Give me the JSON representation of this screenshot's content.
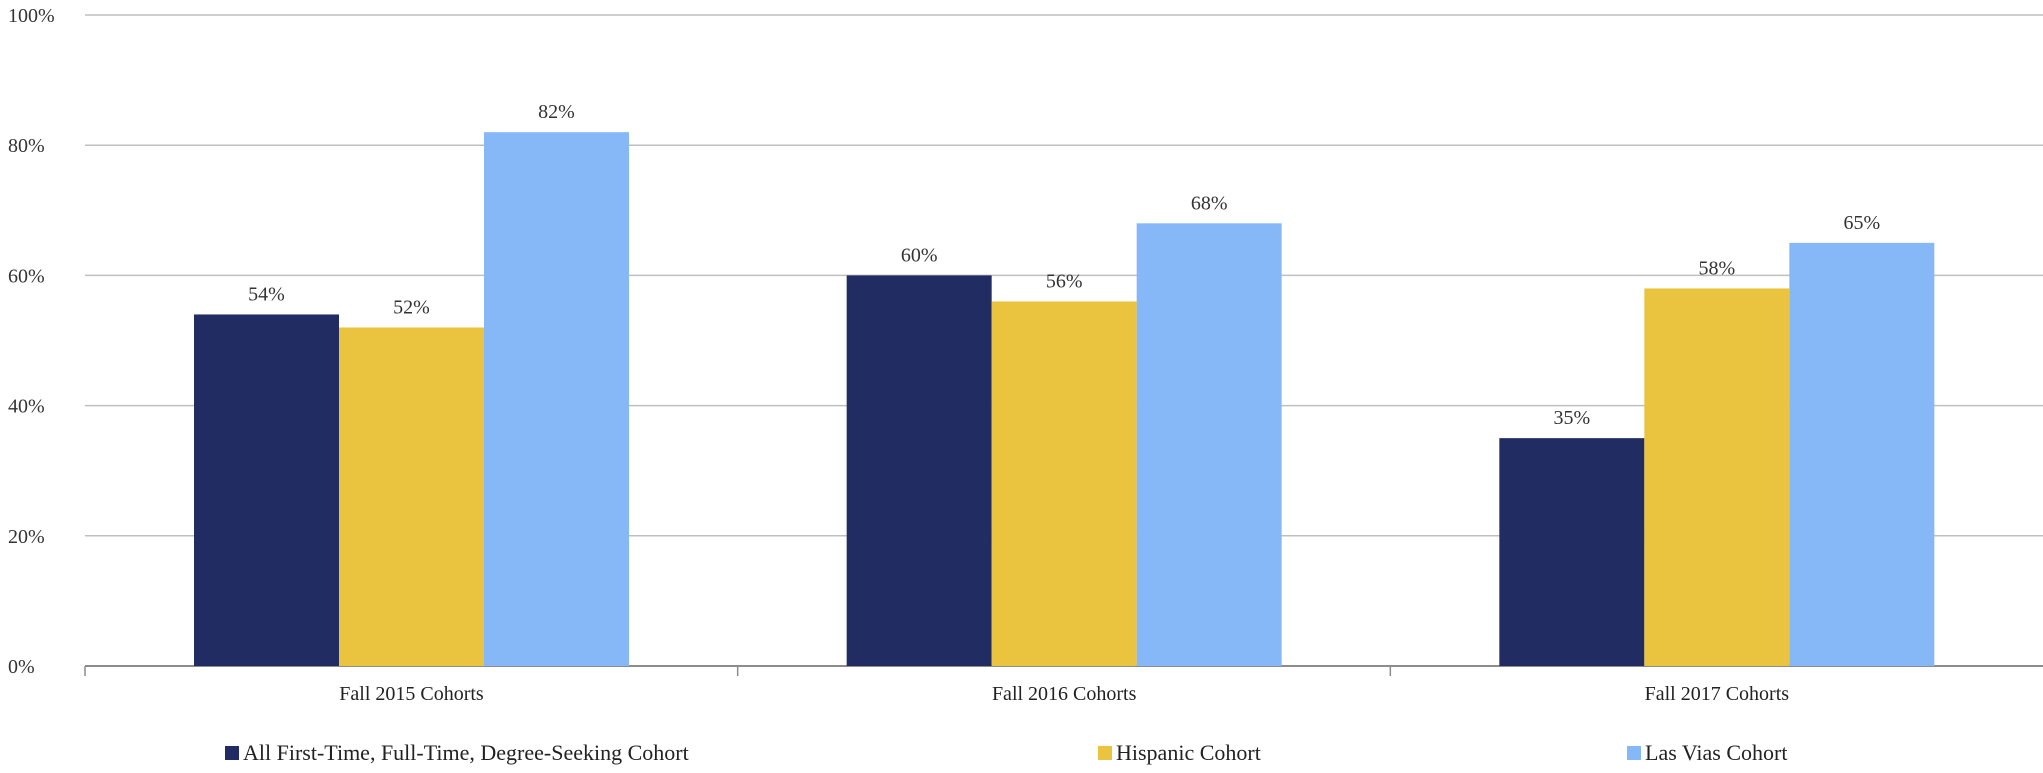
{
  "chart_data": {
    "type": "bar",
    "title": "",
    "xlabel": "",
    "ylabel": "",
    "ylim": [
      0,
      100
    ],
    "y_ticks": [
      0,
      20,
      40,
      60,
      80,
      100
    ],
    "y_tick_labels": [
      "0%",
      "20%",
      "40%",
      "60%",
      "80%",
      "100%"
    ],
    "grid": true,
    "legend_position": "bottom",
    "categories": [
      "Fall 2015 Cohorts",
      "Fall 2016 Cohorts",
      "Fall 2017 Cohorts"
    ],
    "series": [
      {
        "name": "All First-Time, Full-Time, Degree-Seeking Cohort",
        "color": "#202C62",
        "values": [
          54,
          60,
          35
        ],
        "labels": [
          "54%",
          "60%",
          "35%"
        ]
      },
      {
        "name": "Hispanic Cohort",
        "color": "#EAC43F",
        "values": [
          52,
          56,
          58
        ],
        "labels": [
          "52%",
          "56%",
          "58%"
        ]
      },
      {
        "name": "Las Vias Cohort",
        "color": "#86B8F8",
        "values": [
          82,
          68,
          65
        ],
        "labels": [
          "82%",
          "68%",
          "65%"
        ]
      }
    ]
  }
}
